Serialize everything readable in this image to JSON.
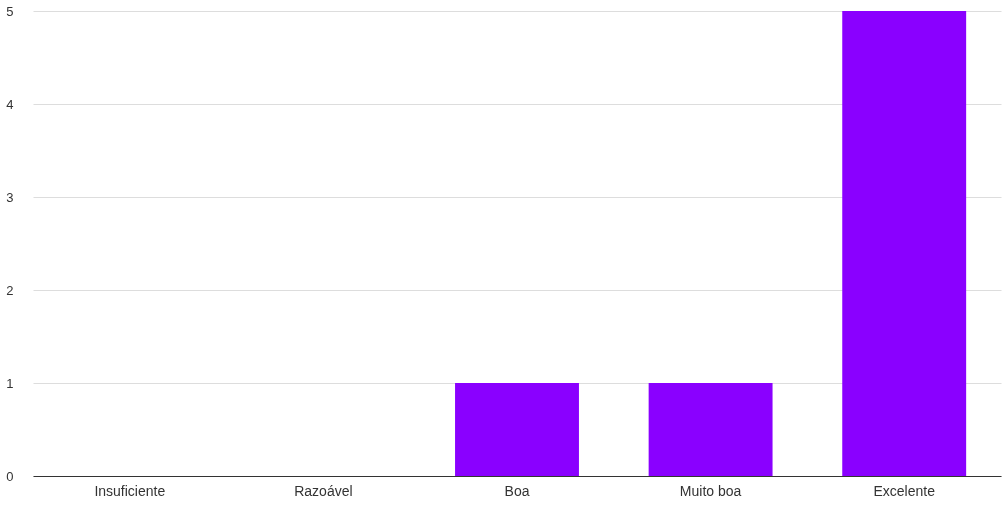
{
  "chart_data": {
    "type": "bar",
    "categories": [
      "Insuficiente",
      "Razoável",
      "Boa",
      "Muito boa",
      "Excelente"
    ],
    "values": [
      0,
      0,
      1,
      1,
      5
    ],
    "color": "#8a00ff",
    "ylim": [
      0,
      5
    ],
    "yticks": [
      0,
      1,
      2,
      3,
      4,
      5
    ],
    "grid": "y"
  }
}
